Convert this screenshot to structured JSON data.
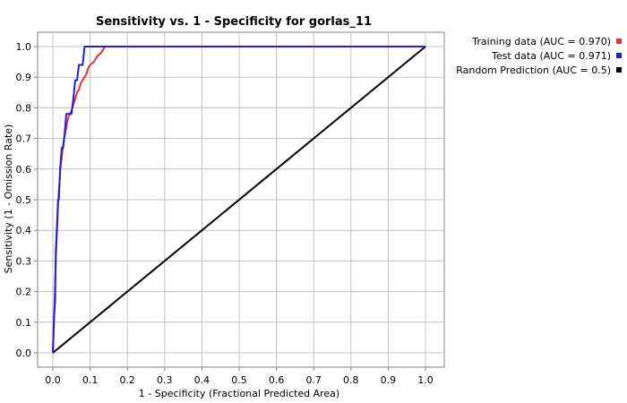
{
  "chart_data": {
    "type": "line",
    "title": "Sensitivity vs. 1 - Specificity for gorlas_11",
    "xlabel": "1 - Specificity  (Fractional Predicted Area)",
    "ylabel": "Sensitivity  (1 - Omission Rate)",
    "xlim": [
      0.0,
      1.0
    ],
    "ylim": [
      0.0,
      1.0
    ],
    "xticks": [
      "0.0",
      "0.1",
      "0.2",
      "0.3",
      "0.4",
      "0.5",
      "0.6",
      "0.7",
      "0.8",
      "0.9",
      "1.0"
    ],
    "yticks": [
      "0.0",
      "0.1",
      "0.2",
      "0.3",
      "0.4",
      "0.5",
      "0.6",
      "0.7",
      "0.8",
      "0.9",
      "1.0"
    ],
    "grid": true,
    "legend_position": "top-right, outside plot",
    "series": [
      {
        "name": "Training data (AUC = 0.970)",
        "color": "#e83030",
        "x": [
          0.0,
          0.002,
          0.004,
          0.006,
          0.008,
          0.01,
          0.012,
          0.014,
          0.016,
          0.018,
          0.02,
          0.022,
          0.024,
          0.026,
          0.028,
          0.03,
          0.034,
          0.038,
          0.042,
          0.046,
          0.05,
          0.055,
          0.06,
          0.065,
          0.07,
          0.075,
          0.08,
          0.085,
          0.09,
          0.095,
          0.1,
          0.11,
          0.12,
          0.13,
          0.14,
          0.2,
          0.4,
          0.6,
          0.8,
          1.0
        ],
        "y": [
          0.0,
          0.06,
          0.14,
          0.22,
          0.3,
          0.37,
          0.42,
          0.48,
          0.53,
          0.56,
          0.6,
          0.62,
          0.64,
          0.66,
          0.68,
          0.7,
          0.72,
          0.75,
          0.77,
          0.78,
          0.79,
          0.81,
          0.83,
          0.85,
          0.86,
          0.88,
          0.89,
          0.9,
          0.91,
          0.93,
          0.94,
          0.95,
          0.97,
          0.98,
          1.0,
          1.0,
          1.0,
          1.0,
          1.0,
          1.0
        ]
      },
      {
        "name": "Test data (AUC = 0.971)",
        "color": "#1f1fe0",
        "x": [
          0.0,
          0.003,
          0.006,
          0.008,
          0.01,
          0.012,
          0.014,
          0.016,
          0.02,
          0.024,
          0.028,
          0.032,
          0.036,
          0.04,
          0.045,
          0.05,
          0.055,
          0.06,
          0.065,
          0.07,
          0.075,
          0.08,
          0.085,
          1.0
        ],
        "y": [
          0.0,
          0.11,
          0.17,
          0.33,
          0.39,
          0.44,
          0.5,
          0.5,
          0.61,
          0.67,
          0.67,
          0.72,
          0.78,
          0.78,
          0.78,
          0.78,
          0.83,
          0.89,
          0.89,
          0.94,
          0.94,
          0.94,
          1.0,
          1.0
        ]
      },
      {
        "name": "Random Prediction (AUC = 0.5)",
        "color": "#000000",
        "x": [
          0.0,
          1.0
        ],
        "y": [
          0.0,
          1.0
        ]
      }
    ]
  }
}
